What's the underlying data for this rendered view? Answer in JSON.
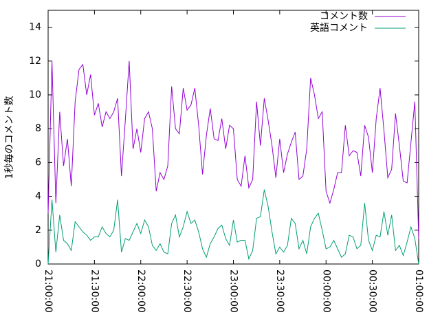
{
  "chart_data": {
    "type": "line",
    "y_label": "1秒毎のコメント数",
    "x": [
      "21:00:00",
      "21:02:30",
      "21:05:00",
      "21:07:30",
      "21:10:00",
      "21:12:30",
      "21:15:00",
      "21:17:30",
      "21:20:00",
      "21:22:30",
      "21:25:00",
      "21:27:30",
      "21:30:00",
      "21:32:30",
      "21:35:00",
      "21:37:30",
      "21:40:00",
      "21:42:30",
      "21:45:00",
      "21:47:30",
      "21:50:00",
      "21:52:30",
      "21:55:00",
      "21:57:30",
      "22:00:00",
      "22:02:30",
      "22:05:00",
      "22:07:30",
      "22:10:00",
      "22:12:30",
      "22:15:00",
      "22:17:30",
      "22:20:00",
      "22:22:30",
      "22:25:00",
      "22:27:30",
      "22:30:00",
      "22:32:30",
      "22:35:00",
      "22:37:30",
      "22:40:00",
      "22:42:30",
      "22:45:00",
      "22:47:30",
      "22:50:00",
      "22:52:30",
      "22:55:00",
      "22:57:30",
      "23:00:00",
      "23:02:30",
      "23:05:00",
      "23:07:30",
      "23:10:00",
      "23:12:30",
      "23:15:00",
      "23:17:30",
      "23:20:00",
      "23:22:30",
      "23:25:00",
      "23:27:30",
      "23:30:00",
      "23:32:30",
      "23:35:00",
      "23:37:30",
      "23:40:00",
      "23:42:30",
      "23:45:00",
      "23:47:30",
      "23:50:00",
      "23:52:30",
      "23:55:00",
      "23:57:30",
      "00:00:00",
      "00:02:30",
      "00:05:00",
      "00:07:30",
      "00:10:00",
      "00:12:30",
      "00:15:00",
      "00:17:30",
      "00:20:00",
      "00:22:30",
      "00:25:00",
      "00:27:30",
      "00:30:00",
      "00:32:30",
      "00:35:00",
      "00:37:30",
      "00:40:00",
      "00:42:30",
      "00:45:00",
      "00:47:30",
      "00:50:00",
      "00:52:30",
      "00:55:00",
      "00:57:30",
      "01:00:00"
    ],
    "series": [
      {
        "name": "コメント数",
        "color": "#9400d3",
        "values": [
          3,
          12,
          3.6,
          9,
          5.8,
          7.4,
          4.6,
          9.6,
          11.5,
          11.8,
          10,
          11.2,
          8.8,
          9.5,
          8.1,
          9,
          8.6,
          9,
          9.8,
          5.2,
          8.5,
          12,
          6.8,
          8,
          6.6,
          8.6,
          9,
          8,
          4.3,
          5.4,
          5,
          5.8,
          10.5,
          8,
          7.7,
          10.4,
          9.1,
          9.4,
          10.4,
          8.2,
          5.3,
          7.6,
          9.2,
          7.4,
          7.3,
          8.6,
          6.8,
          8.2,
          8,
          5,
          4.6,
          6.4,
          4.5,
          5,
          9.6,
          7,
          9.8,
          8.5,
          7,
          5.1,
          7.4,
          5.4,
          6.5,
          7.2,
          7.8,
          5,
          5.2,
          6.8,
          11,
          10,
          8.6,
          9,
          4.3,
          3.6,
          4.4,
          5.4,
          5.4,
          8.2,
          6.4,
          6.7,
          6.6,
          5.2,
          8.2,
          7.5,
          5.4,
          8.6,
          10.4,
          7.9,
          5.1,
          5.6,
          8.9,
          7,
          4.9,
          4.8,
          7.2,
          9.6,
          1.5
        ]
      },
      {
        "name": "英語コメント",
        "color": "#009e73",
        "values": [
          0,
          3.8,
          0.7,
          2.9,
          1.4,
          1.2,
          0.8,
          2.5,
          2.2,
          1.9,
          1.7,
          1.4,
          1.6,
          1.6,
          2.2,
          1.8,
          1.6,
          2,
          3.8,
          0.7,
          1.5,
          1.4,
          1.9,
          2.4,
          1.8,
          2.6,
          2.2,
          1.1,
          0.8,
          1.2,
          0.7,
          0.6,
          2.4,
          2.9,
          1.6,
          2.2,
          3.1,
          2.4,
          2.6,
          1.9,
          0.9,
          0.4,
          1.2,
          1.6,
          2.1,
          2.3,
          1.5,
          1.1,
          2.6,
          1.3,
          1.4,
          1.4,
          0.3,
          0.8,
          2.7,
          2.8,
          4.4,
          3.4,
          1.9,
          0.6,
          1,
          0.7,
          1.1,
          2.7,
          2.4,
          0.9,
          1.4,
          0.6,
          2.2,
          2.7,
          3,
          2,
          0.9,
          1,
          1.4,
          0.9,
          0.4,
          0.6,
          1.7,
          1.6,
          0.9,
          1.1,
          3.6,
          1.4,
          0.8,
          1.7,
          1.6,
          3.1,
          1.7,
          2.9,
          0.8,
          1.1,
          0.5,
          1.3,
          2.2,
          1.5,
          0
        ]
      }
    ],
    "xlim": [
      "21:00:00",
      "01:00:00"
    ],
    "xticks": [
      "21:00:00",
      "21:30:00",
      "22:00:00",
      "22:30:00",
      "23:00:00",
      "23:30:00",
      "00:00:00",
      "00:30:00",
      "01:00:00"
    ],
    "ylim": [
      0,
      15
    ],
    "yticks": [
      0,
      2,
      4,
      6,
      8,
      10,
      12,
      14
    ],
    "legend": "top-right"
  }
}
